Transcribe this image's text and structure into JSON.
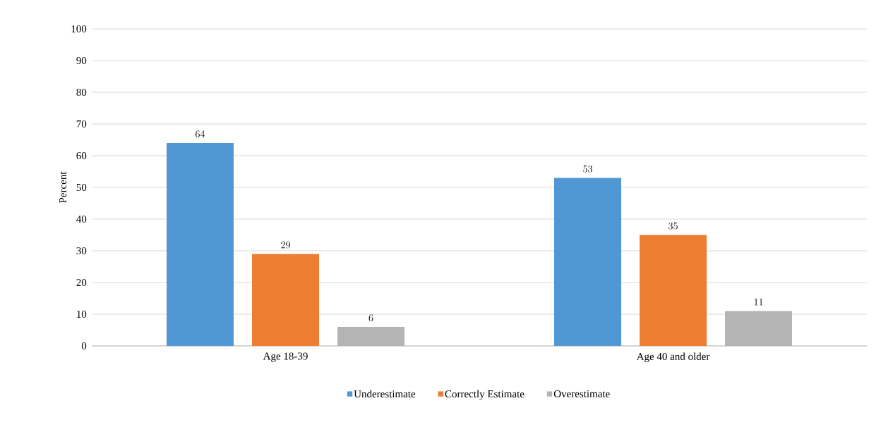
{
  "chart_data": {
    "type": "bar",
    "ylabel": "Percent",
    "categories": [
      "Age 18-39",
      "Age 40 and older"
    ],
    "series": [
      {
        "name": "Underestimate",
        "color": "#5097d3",
        "values": [
          64,
          53
        ]
      },
      {
        "name": "Correctly Estimate",
        "color": "#ed7d31",
        "values": [
          29,
          35
        ]
      },
      {
        "name": "Overestimate",
        "color": "#b4b4b4",
        "values": [
          6,
          11
        ]
      }
    ],
    "ylim": [
      0,
      100
    ],
    "yticks": [
      0,
      10,
      20,
      30,
      40,
      50,
      60,
      70,
      80,
      90,
      100
    ],
    "grid": "y",
    "legend": "bottom",
    "data_labels": true
  }
}
